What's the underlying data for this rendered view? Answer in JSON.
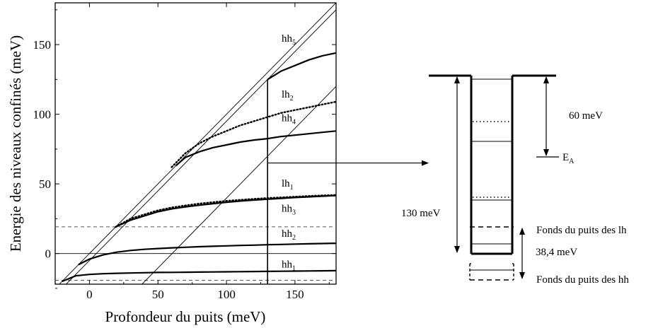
{
  "chart_data": {
    "type": "line",
    "xlabel": "Profondeur du puits (meV)",
    "ylabel": "Energie des niveaux confinés (meV)",
    "xlim": [
      -25,
      180
    ],
    "ylim": [
      -22,
      180
    ],
    "xticks": [
      0,
      50,
      100,
      150
    ],
    "yticks": [
      0,
      50,
      100,
      150
    ],
    "reference_lines": {
      "horizontal_dashed": [
        19.2,
        -19.2
      ],
      "horizontal_solid": [
        0
      ],
      "diagonals": [
        {
          "points": [
            [
              -25,
              -25
            ],
            [
              180,
              180
            ]
          ]
        },
        {
          "points": [
            [
              38.4,
              -22
            ],
            [
              180,
              120
            ]
          ]
        },
        {
          "points": [
            [
              -20,
              -25
            ],
            [
              180,
              175
            ]
          ]
        }
      ],
      "vertical_at": 130,
      "arrow_from_y": 65
    },
    "series": [
      {
        "name": "hh5",
        "label_main": "hh",
        "label_sub": "5",
        "style": "solid",
        "x": [
          130,
          140,
          150,
          160,
          170,
          180
        ],
        "y": [
          125,
          131,
          135,
          139,
          142,
          144
        ]
      },
      {
        "name": "lh2",
        "label_main": "lh",
        "label_sub": "2",
        "style": "dotted",
        "x": [
          60,
          70,
          80,
          90,
          100,
          110,
          120,
          130,
          140,
          150,
          160,
          170,
          180
        ],
        "y": [
          62,
          72,
          79,
          84,
          88,
          92,
          95,
          98,
          101,
          103,
          105,
          107,
          109
        ]
      },
      {
        "name": "hh4",
        "label_main": "hh",
        "label_sub": "4",
        "style": "solid",
        "x": [
          63,
          70,
          80,
          90,
          100,
          110,
          120,
          130,
          140,
          150,
          160,
          170,
          180
        ],
        "y": [
          63,
          69,
          73,
          76,
          78,
          80,
          81.5,
          82.5,
          84,
          85,
          86,
          87,
          88
        ]
      },
      {
        "name": "lh1",
        "label_main": "lh",
        "label_sub": "1",
        "style": "dotted",
        "x": [
          19,
          30,
          40,
          50,
          60,
          70,
          80,
          90,
          100,
          110,
          120,
          130,
          140,
          150,
          160,
          170,
          180
        ],
        "y": [
          19,
          25,
          28,
          31,
          33,
          34.5,
          35.8,
          36.8,
          37.8,
          38.5,
          39.2,
          39.8,
          40.3,
          40.8,
          41.3,
          41.7,
          42
        ]
      },
      {
        "name": "hh3",
        "label_main": "hh",
        "label_sub": "3",
        "style": "solid",
        "x": [
          19,
          30,
          40,
          50,
          60,
          70,
          80,
          90,
          100,
          110,
          120,
          130,
          140,
          150,
          160,
          170,
          180
        ],
        "y": [
          19,
          24,
          27,
          30,
          32,
          33.5,
          34.7,
          35.8,
          36.8,
          37.7,
          38.4,
          39,
          39.6,
          40.2,
          40.7,
          41.2,
          41.6
        ]
      },
      {
        "name": "hh2",
        "label_main": "hh",
        "label_sub": "2",
        "style": "solid",
        "x": [
          -8,
          0,
          10,
          20,
          30,
          40,
          50,
          60,
          70,
          80,
          90,
          100,
          110,
          120,
          130,
          140,
          150,
          160,
          170,
          180
        ],
        "y": [
          -8,
          -4,
          -1,
          1,
          2.2,
          3,
          3.6,
          4.1,
          4.5,
          4.9,
          5.2,
          5.5,
          5.8,
          6,
          6.3,
          6.5,
          6.8,
          7,
          7.2,
          7.4
        ]
      },
      {
        "name": "hh1",
        "label_main": "hh",
        "label_sub": "1",
        "style": "solid",
        "x": [
          -20,
          -10,
          0,
          10,
          20,
          30,
          40,
          50,
          60,
          70,
          80,
          90,
          100,
          110,
          120,
          130,
          140,
          150,
          160,
          170,
          180
        ],
        "y": [
          -20,
          -16,
          -15,
          -14.5,
          -14.2,
          -14,
          -13.8,
          -13.6,
          -13.5,
          -13.4,
          -13.3,
          -13.2,
          -13.1,
          -13,
          -12.9,
          -12.8,
          -12.7,
          -12.6,
          -12.5,
          -12.4,
          -12.3
        ]
      }
    ]
  },
  "diagram": {
    "label_130": "130 meV",
    "label_60": "60 meV",
    "label_EA_main": "E",
    "label_EA_sub": "A",
    "label_384": "38,4 meV",
    "label_fonds_lh": "Fonds du puits des lh",
    "label_fonds_hh": "Fonds du puits des hh"
  }
}
